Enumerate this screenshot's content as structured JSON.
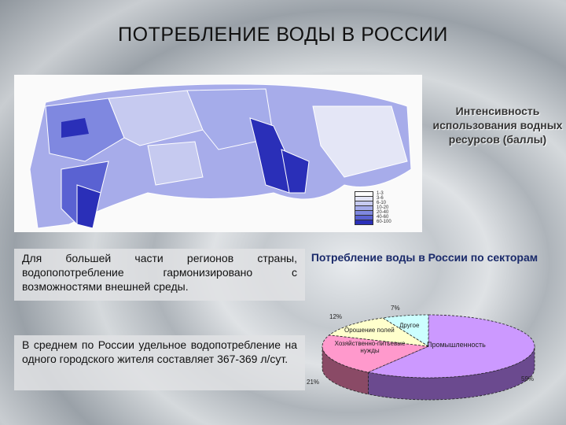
{
  "title": "ПОТРЕБЛЕНИЕ ВОДЫ В РОССИИ",
  "map": {
    "legend_title": "Интенсивность использования водных ресурсов (баллы)",
    "legend_ranges": [
      "1-3",
      "3-6",
      "6-10",
      "10-20",
      "20-40",
      "40-60",
      "60-100"
    ],
    "legend_colors": [
      "#ffffff",
      "#e4e6f6",
      "#c6caf0",
      "#a5acea",
      "#7f88e0",
      "#5a62d2",
      "#2a2fb8"
    ]
  },
  "text": {
    "para1": "Для большей части регионов страны, водопопотребление гармонизировано с возможностями внешней среды.",
    "para2": "В среднем по России удельное водопотребление на одного городского жителя составляет 367-369 л/сут."
  },
  "chart_data": {
    "type": "pie",
    "title": "Потребление воды в России по секторам",
    "categories": [
      "Промышленность",
      "Хозяйственно-питьевые нужды",
      "Орошение полей",
      "Другое"
    ],
    "values": [
      59,
      21,
      12,
      7
    ],
    "value_labels": [
      "59%",
      "21%",
      "12%",
      "7%"
    ],
    "colors": [
      "#cc99ff",
      "#ff99cc",
      "#ffffcc",
      "#ccffff"
    ],
    "side_colors": [
      "#6b4a8f",
      "#8a4a66",
      "#a8a070",
      "#70a8a8"
    ]
  }
}
